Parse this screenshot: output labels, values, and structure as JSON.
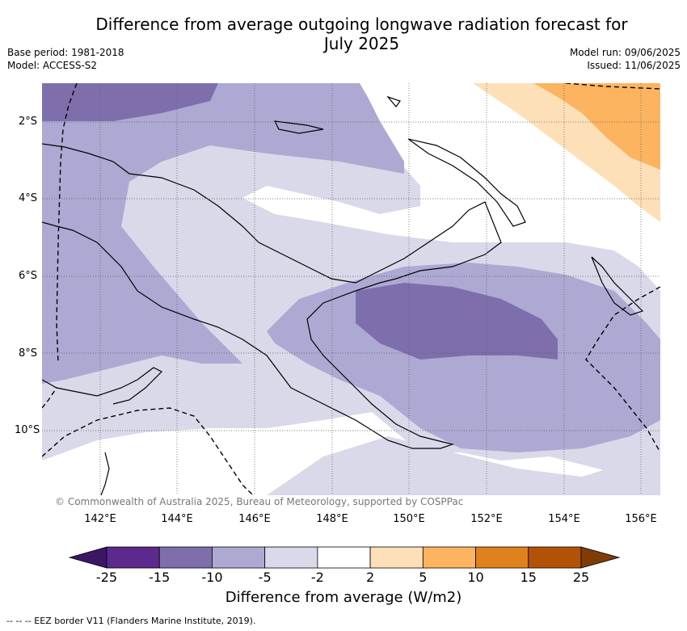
{
  "title_line1": "Difference from average outgoing longwave radiation forecast for",
  "title_line2": "July 2025",
  "meta_left": [
    "Base period: 1981-2018",
    "Model: ACCESS-S2"
  ],
  "meta_right": [
    "Model run: 09/06/2025",
    "Issued: 11/06/2025"
  ],
  "lat_ticks": [
    "2°S",
    "4°S",
    "6°S",
    "8°S",
    "10°S"
  ],
  "lon_ticks": [
    "142°E",
    "144°E",
    "146°E",
    "148°E",
    "150°E",
    "152°E",
    "154°E",
    "156°E"
  ],
  "copyright": "© Commonwealth of Australia 2025, Bureau of Meteorology, supported by COSPPac",
  "colorbar": {
    "labels": [
      "-25",
      "-15",
      "-10",
      "-5",
      "-2",
      "2",
      "5",
      "10",
      "15",
      "25"
    ],
    "colors": [
      "#5b2a8c",
      "#7e6fac",
      "#aea9d3",
      "#d9d9ea",
      "#ffffff",
      "#fde0b8",
      "#fcb461",
      "#e0811e",
      "#b25207"
    ],
    "low_extend_color": "#3c1565",
    "high_extend_color": "#7f3c05",
    "title": "Difference from average (W/m2)"
  },
  "footnote": "-- -- -- EEZ border V11 (Flanders Marine Institute, 2019)."
}
